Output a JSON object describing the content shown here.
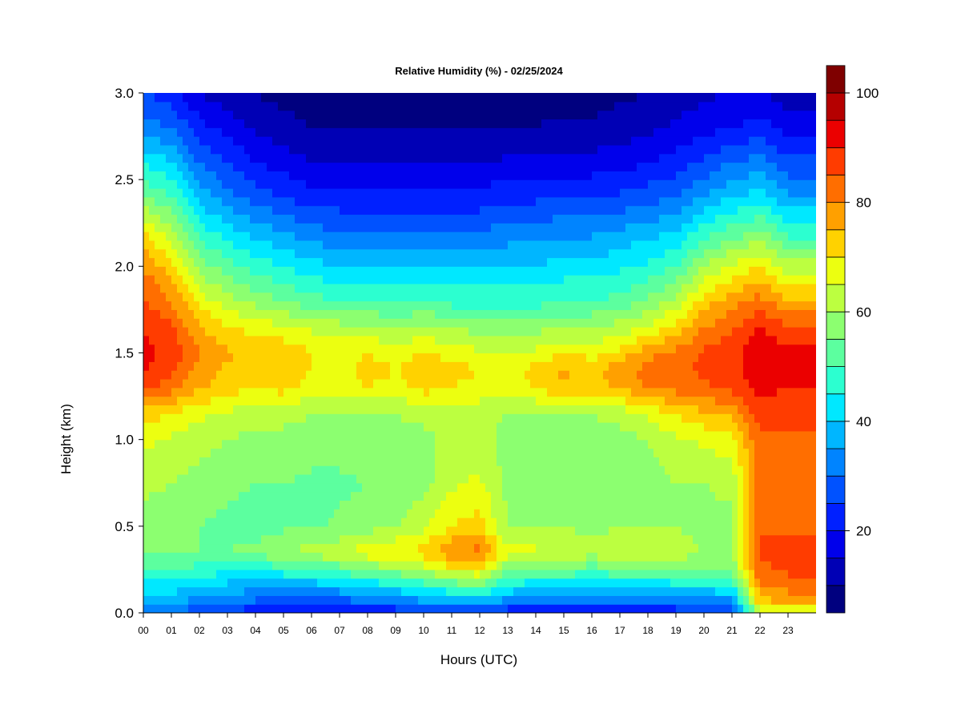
{
  "chart_data": {
    "type": "heatmap",
    "title": "Relative Humidity (%) - 02/25/2024",
    "xlabel": "Hours (UTC)",
    "ylabel": "Height (km)",
    "xlim": [
      0,
      24
    ],
    "ylim": [
      0,
      3
    ],
    "x_ticks": [
      "00",
      "01",
      "02",
      "03",
      "04",
      "05",
      "06",
      "07",
      "08",
      "09",
      "10",
      "11",
      "12",
      "13",
      "14",
      "15",
      "16",
      "17",
      "18",
      "19",
      "20",
      "21",
      "22",
      "23"
    ],
    "y_ticks": [
      "0.0",
      "0.5",
      "1.0",
      "1.5",
      "2.0",
      "2.5",
      "3.0"
    ],
    "colorbar": {
      "min": 5,
      "max": 100,
      "step": 5,
      "tick_values": [
        20,
        40,
        60,
        80,
        100
      ],
      "tick_labels": [
        "20",
        "40",
        "60",
        "80",
        "100"
      ],
      "colors": [
        "#00007F",
        "#0000B5",
        "#0000EB",
        "#0020FF",
        "#0052FF",
        "#0084FF",
        "#00B6FF",
        "#00E8FF",
        "#2CFFD0",
        "#5CFF9F",
        "#8CFF70",
        "#BCFF40",
        "#ECFF10",
        "#FFD200",
        "#FFA000",
        "#FF6E00",
        "#FF3C00",
        "#EB0000",
        "#B50000",
        "#7F0000"
      ]
    },
    "grid": false,
    "heights_km": [
      0.0,
      0.05,
      0.15,
      0.25,
      0.35,
      0.5,
      0.75,
      1.0,
      1.15,
      1.3,
      1.4,
      1.5,
      1.65,
      1.8,
      2.0,
      2.2,
      2.4,
      2.6,
      2.8,
      3.0
    ],
    "hours": [
      0,
      1,
      2,
      3,
      4,
      5,
      6,
      7,
      8,
      9,
      10,
      11,
      12,
      13,
      14,
      15,
      16,
      17,
      18,
      19,
      20,
      21,
      22,
      23,
      24
    ],
    "values_by_hour": [
      [
        28,
        35,
        42,
        50,
        55,
        56,
        62,
        66,
        72,
        86,
        90,
        92,
        90,
        86,
        80,
        70,
        55,
        45,
        32,
        25
      ],
      [
        28,
        35,
        42,
        50,
        55,
        56,
        60,
        64,
        70,
        82,
        86,
        88,
        86,
        80,
        72,
        62,
        50,
        40,
        30,
        22
      ],
      [
        25,
        32,
        40,
        48,
        55,
        55,
        58,
        62,
        66,
        76,
        78,
        80,
        76,
        68,
        58,
        48,
        38,
        30,
        22,
        15
      ],
      [
        22,
        30,
        38,
        46,
        55,
        54,
        56,
        60,
        64,
        72,
        74,
        76,
        70,
        62,
        52,
        42,
        32,
        25,
        18,
        12
      ],
      [
        20,
        28,
        36,
        46,
        56,
        53,
        55,
        58,
        62,
        70,
        72,
        74,
        68,
        58,
        48,
        38,
        28,
        20,
        14,
        10
      ],
      [
        18,
        26,
        36,
        48,
        60,
        54,
        55,
        58,
        62,
        72,
        74,
        74,
        66,
        55,
        45,
        35,
        25,
        18,
        12,
        8
      ],
      [
        18,
        26,
        36,
        50,
        62,
        54,
        54,
        57,
        60,
        68,
        70,
        70,
        64,
        52,
        42,
        32,
        22,
        15,
        10,
        7
      ],
      [
        18,
        26,
        38,
        52,
        64,
        56,
        54,
        57,
        60,
        66,
        68,
        68,
        62,
        50,
        40,
        30,
        22,
        15,
        10,
        7
      ],
      [
        20,
        28,
        40,
        56,
        68,
        58,
        55,
        58,
        60,
        70,
        72,
        70,
        62,
        50,
        40,
        30,
        22,
        15,
        10,
        7
      ],
      [
        20,
        30,
        42,
        58,
        70,
        60,
        56,
        58,
        60,
        68,
        70,
        68,
        60,
        48,
        40,
        30,
        22,
        15,
        10,
        8
      ],
      [
        22,
        32,
        46,
        62,
        72,
        64,
        58,
        58,
        62,
        72,
        74,
        70,
        62,
        50,
        40,
        30,
        22,
        15,
        10,
        8
      ],
      [
        22,
        34,
        50,
        68,
        80,
        70,
        64,
        62,
        62,
        70,
        72,
        68,
        60,
        48,
        40,
        30,
        22,
        15,
        10,
        8
      ],
      [
        22,
        36,
        52,
        70,
        82,
        72,
        66,
        62,
        62,
        68,
        70,
        66,
        58,
        48,
        40,
        30,
        22,
        15,
        10,
        8
      ],
      [
        20,
        30,
        44,
        56,
        66,
        60,
        58,
        58,
        60,
        66,
        68,
        64,
        58,
        48,
        40,
        32,
        24,
        16,
        10,
        8
      ],
      [
        18,
        28,
        40,
        54,
        66,
        60,
        58,
        58,
        60,
        70,
        72,
        66,
        58,
        48,
        40,
        32,
        24,
        16,
        10,
        8
      ],
      [
        18,
        28,
        40,
        54,
        64,
        60,
        58,
        58,
        60,
        74,
        76,
        70,
        60,
        50,
        42,
        34,
        25,
        17,
        11,
        8
      ],
      [
        18,
        28,
        40,
        52,
        62,
        58,
        56,
        58,
        60,
        72,
        74,
        68,
        60,
        50,
        42,
        34,
        25,
        17,
        11,
        8
      ],
      [
        18,
        28,
        40,
        54,
        64,
        60,
        58,
        58,
        62,
        76,
        78,
        72,
        62,
        52,
        44,
        36,
        26,
        18,
        12,
        9
      ],
      [
        18,
        28,
        40,
        54,
        64,
        60,
        58,
        60,
        66,
        80,
        82,
        78,
        66,
        56,
        46,
        38,
        28,
        20,
        14,
        10
      ],
      [
        20,
        30,
        42,
        56,
        62,
        60,
        60,
        64,
        70,
        82,
        84,
        82,
        72,
        62,
        50,
        40,
        30,
        22,
        16,
        12
      ],
      [
        20,
        30,
        42,
        56,
        60,
        58,
        60,
        66,
        74,
        84,
        86,
        86,
        80,
        72,
        60,
        48,
        35,
        26,
        18,
        14
      ],
      [
        22,
        32,
        44,
        56,
        60,
        58,
        62,
        68,
        76,
        86,
        88,
        88,
        84,
        78,
        66,
        52,
        40,
        30,
        20,
        15
      ],
      [
        58,
        72,
        80,
        84,
        86,
        84,
        82,
        84,
        88,
        92,
        94,
        94,
        90,
        82,
        70,
        56,
        42,
        32,
        22,
        16
      ],
      [
        60,
        74,
        82,
        86,
        86,
        84,
        82,
        84,
        86,
        90,
        92,
        92,
        86,
        76,
        62,
        48,
        36,
        26,
        18,
        12
      ],
      [
        60,
        74,
        82,
        86,
        86,
        84,
        82,
        84,
        86,
        90,
        92,
        92,
        86,
        76,
        62,
        48,
        36,
        26,
        18,
        12
      ]
    ]
  }
}
